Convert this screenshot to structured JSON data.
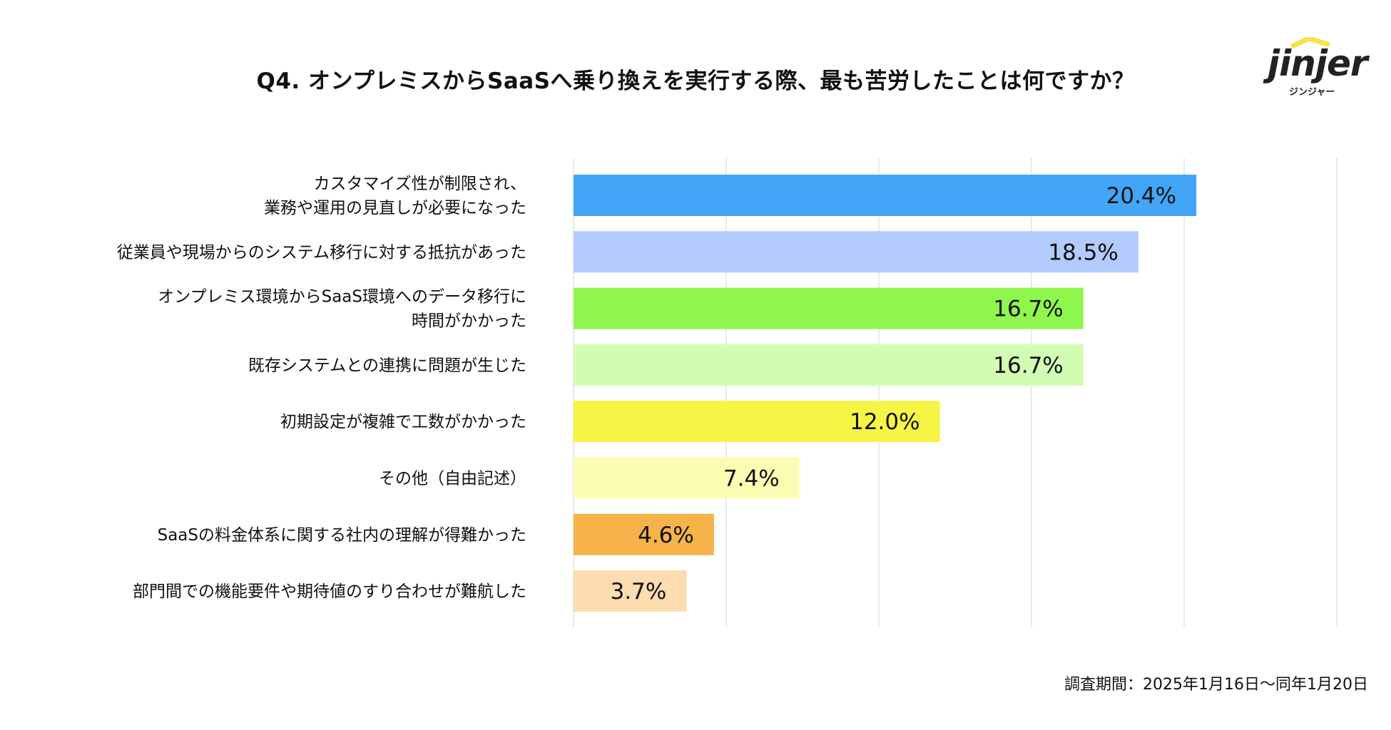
{
  "title": "Q4. オンプレミスからSaaSへ乗り換えを実行する際、最も苦労したことは何ですか？",
  "logo": {
    "word": "jinjer",
    "kana": "ジンジャー",
    "accent_color": "#f5e34a"
  },
  "footnote": "調査期間：2025年1月16日〜同年1月20日",
  "chart_data": {
    "type": "bar",
    "orientation": "horizontal",
    "title": "Q4. オンプレミスからSaaSへ乗り換えを実行する際、最も苦労したことは何ですか？",
    "xlabel": "",
    "ylabel": "",
    "xlim": [
      0,
      25
    ],
    "grid": true,
    "legend": "none",
    "categories": [
      [
        "カスタマイズ性が制限され、",
        "業務や運用の見直しが必要になった"
      ],
      [
        "従業員や現場からのシステム移行に対する抵抗があった"
      ],
      [
        "オンプレミス環境からSaaS環境へのデータ移行に",
        "時間がかかった"
      ],
      [
        "既存システムとの連携に問題が生じた"
      ],
      [
        "初期設定が複雑で工数がかかった"
      ],
      [
        "その他（自由記述）"
      ],
      [
        "SaaSの料金体系に関する社内の理解が得難かった"
      ],
      [
        "部門間での機能要件や期待値のすり合わせが難航した"
      ]
    ],
    "values": [
      20.4,
      18.5,
      16.7,
      16.7,
      12.0,
      7.4,
      4.6,
      3.7
    ],
    "value_labels": [
      "20.4%",
      "18.5%",
      "16.7%",
      "16.7%",
      "12.0%",
      "7.4%",
      "4.6%",
      "3.7%"
    ],
    "colors": [
      "#42a5f5",
      "#b3cbfc",
      "#8ff74c",
      "#d3fcb3",
      "#f6f545",
      "#fdfcb3",
      "#f5b34a",
      "#fddcb0"
    ]
  }
}
